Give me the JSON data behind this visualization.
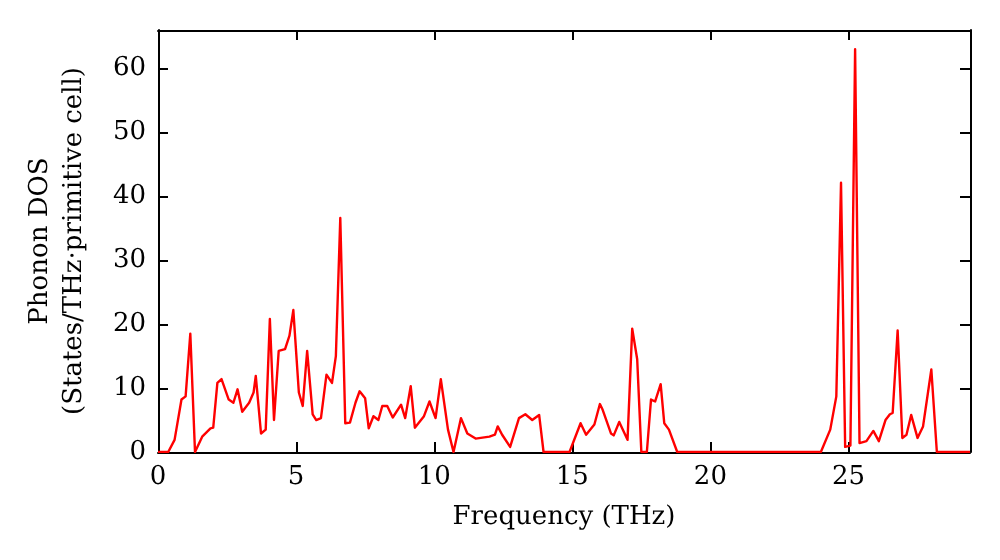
{
  "chart_data": {
    "type": "line",
    "xlabel": "Frequency (THz)",
    "ylabel": "Phonon DOS\n(States/THz·primitive cell)",
    "xlim": [
      0,
      29.4
    ],
    "xticks": [
      0,
      5,
      10,
      15,
      20,
      25
    ],
    "ylim": [
      0,
      66
    ],
    "yticks": [
      0,
      10,
      20,
      30,
      40,
      50,
      60
    ],
    "grid": false,
    "marker": "none",
    "line_style": "solid",
    "series": [
      {
        "color": "#ff0000",
        "x": [
          0,
          0.37,
          0.6,
          0.85,
          1.0,
          1.17,
          1.34,
          1.6,
          1.9,
          2.0,
          2.15,
          2.3,
          2.56,
          2.73,
          2.88,
          3.05,
          3.3,
          3.46,
          3.54,
          3.73,
          3.9,
          4.05,
          4.2,
          4.37,
          4.6,
          4.76,
          4.9,
          5.1,
          5.24,
          5.4,
          5.6,
          5.73,
          5.9,
          6.1,
          6.3,
          6.44,
          6.6,
          6.78,
          6.95,
          7.15,
          7.3,
          7.5,
          7.63,
          7.8,
          7.98,
          8.12,
          8.3,
          8.5,
          8.8,
          8.95,
          9.15,
          9.3,
          9.63,
          9.83,
          10.05,
          10.24,
          10.5,
          10.7,
          10.97,
          11.2,
          11.5,
          12.0,
          12.2,
          12.3,
          12.46,
          12.75,
          13.07,
          13.3,
          13.55,
          13.8,
          13.96,
          14.9,
          15.3,
          15.5,
          15.8,
          16.0,
          16.1,
          16.4,
          16.5,
          16.7,
          17.0,
          17.17,
          17.35,
          17.5,
          17.7,
          17.85,
          18.0,
          18.2,
          18.33,
          18.5,
          18.8,
          24.0,
          24.34,
          24.56,
          24.73,
          24.88,
          25.07,
          25.24,
          25.4,
          25.65,
          25.9,
          26.1,
          26.34,
          26.5,
          26.6,
          26.78,
          26.95,
          27.1,
          27.27,
          27.5,
          27.7,
          28.0,
          28.2,
          29.4
        ],
        "values": [
          0,
          0,
          1.9,
          8.2,
          8.7,
          18.5,
          0,
          2.4,
          3.7,
          3.8,
          10.8,
          11.4,
          8.2,
          7.7,
          9.8,
          6.3,
          7.7,
          9.3,
          11.9,
          2.9,
          3.5,
          20.8,
          5,
          15.8,
          16.1,
          18.2,
          22.2,
          9.3,
          7.2,
          15.8,
          5.9,
          5,
          5.3,
          12.1,
          10.8,
          15,
          36.6,
          4.5,
          4.6,
          7.7,
          9.5,
          8.4,
          3.7,
          5.6,
          5,
          7.2,
          7.2,
          5.4,
          7.4,
          5.3,
          10.3,
          3.8,
          5.6,
          7.9,
          5.3,
          11.4,
          3.5,
          0,
          5.3,
          2.9,
          2.1,
          2.4,
          2.7,
          4,
          2.7,
          0.8,
          5.3,
          5.9,
          5,
          5.8,
          0,
          0,
          4.5,
          2.7,
          4.3,
          7.5,
          6.6,
          2.9,
          2.6,
          4.7,
          1.9,
          19.3,
          14.5,
          0,
          0,
          8.2,
          7.9,
          10.6,
          4.5,
          3.5,
          0,
          0,
          3.5,
          8.7,
          42.1,
          0.8,
          1,
          63,
          1.4,
          1.7,
          3.3,
          1.7,
          5,
          5.9,
          6.1,
          19,
          2.2,
          2.7,
          5.8,
          2.2,
          4,
          12.9,
          0,
          0
        ]
      }
    ]
  }
}
